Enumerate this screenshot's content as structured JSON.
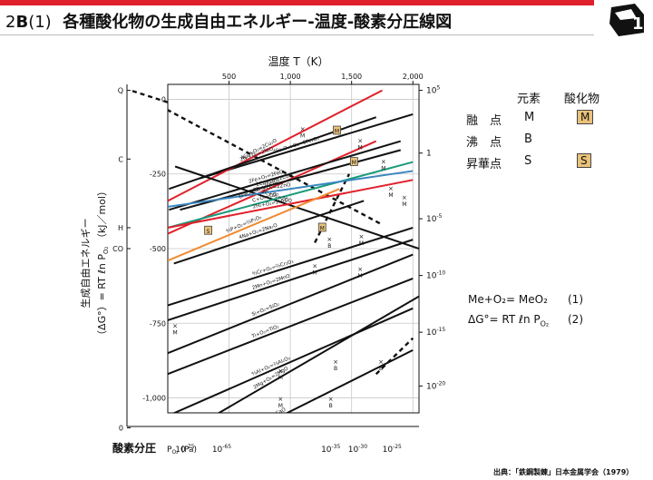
{
  "header": {
    "number": "2",
    "letter": "B",
    "sub": "(1)",
    "title": "各種酸化物の生成自由エネルギー-温度-酸素分圧線図",
    "accent_color": "#e0202a"
  },
  "legend": {
    "col_element": "元素",
    "col_oxide": "酸化物",
    "rows": [
      {
        "label": "融　点",
        "element": "M",
        "oxide": "M"
      },
      {
        "label": "沸　点",
        "element": "B",
        "oxide": ""
      },
      {
        "label": "昇華点",
        "element": "S",
        "oxide": "S"
      }
    ]
  },
  "equations": [
    {
      "text": "Me+O₂= MeO₂",
      "num": "(1)"
    },
    {
      "text": "ΔG°= RT ℓn P",
      "sub": "O₂",
      "num": "(2)"
    }
  ],
  "source": "出典：「鉄鋼製錬」日本金属学会（1979）",
  "chart_data": {
    "type": "line",
    "top_axis": {
      "label": "温度 T（K）",
      "ticks": [
        "500",
        "1,000",
        "1,500",
        "2,000"
      ],
      "values": [
        500,
        1000,
        1500,
        2000
      ],
      "range": [
        0,
        2000
      ]
    },
    "y_axis": {
      "label": "生成自由エネルギー",
      "label2": "（ΔG°）= RT ℓn P",
      "label2_sub": "O₂",
      "label2_tail": "（kJ／mol）",
      "ticks": [
        "0",
        "-250",
        "-500",
        "-750",
        "-1,000"
      ],
      "values": [
        0,
        -250,
        -500,
        -750,
        -1000
      ],
      "range": [
        -1050,
        50
      ]
    },
    "left_scale": [
      {
        "label": "Q",
        "value": 30
      },
      {
        "label": "C",
        "value": -200
      },
      {
        "label": "H",
        "value": -430
      },
      {
        "label": "CO",
        "value": -500
      },
      {
        "label": "0",
        "value": -1100
      }
    ],
    "right_scale": {
      "label_values": [
        {
          "base": "10",
          "exp": "5",
          "value": 30
        },
        {
          "base": "1",
          "exp": "",
          "value": -180
        },
        {
          "base": "10",
          "exp": "-5",
          "value": -400
        },
        {
          "base": "10",
          "exp": "-10",
          "value": -590
        },
        {
          "base": "10",
          "exp": "-15",
          "value": -780
        },
        {
          "base": "10",
          "exp": "-20",
          "value": -960
        }
      ]
    },
    "bottom_axis": {
      "label": "酸素分圧",
      "unit_text": "P",
      "unit_sub": "O₂",
      "unit_tail": "(Pa)",
      "ticks": [
        {
          "base": "10",
          "exp": "-75",
          "x": 140
        },
        {
          "base": "10",
          "exp": "-65",
          "x": 440
        },
        {
          "base": "10",
          "exp": "-35",
          "x": 1330
        },
        {
          "base": "10",
          "exp": "-30",
          "x": 1550
        },
        {
          "base": "10",
          "exp": "-25",
          "x": 1830
        }
      ]
    },
    "series": [
      {
        "name": "4Fe₃O₄+O₂=6Fe₂O₃",
        "color": "#111111",
        "x": [
          260,
          2000
        ],
        "y": [
          -265,
          -50
        ]
      },
      {
        "name": "4Cu+O₂=2Cu₂O",
        "color": "#e0202a",
        "x": [
          0,
          1750
        ],
        "y": [
          -340,
          30
        ]
      },
      {
        "name": "2Ni+O₂=2NiO",
        "color": "#111111",
        "x": [
          10,
          1700
        ],
        "y": [
          -300,
          -60
        ]
      },
      {
        "name": "6FeO+O₂=2Fe₃O₄",
        "color": "#e0202a",
        "x": [
          0,
          1700
        ],
        "y": [
          -450,
          -140
        ]
      },
      {
        "name": "2Co+O₂=2CoO",
        "color": "#111111",
        "x": [
          100,
          1900
        ],
        "y": [
          -370,
          -170
        ]
      },
      {
        "name": "2Fe+O₂=2FeO",
        "color": "#111111",
        "x": [
          10,
          1900
        ],
        "y": [
          -370,
          -140
        ]
      },
      {
        "name": "2C+O₂=2CO",
        "color": "#111111",
        "x": [
          60,
          2050
        ],
        "y": [
          -225,
          -500
        ]
      },
      {
        "name": "C+O₂=CO₂",
        "color": "#1a9a7a",
        "x": [
          0,
          2000
        ],
        "y": [
          -430,
          -210
        ]
      },
      {
        "name": "2Zn+O₂=2ZnO",
        "color": "#3a86c0",
        "x": [
          0,
          2000
        ],
        "y": [
          -360,
          -240
        ]
      },
      {
        "name": "2H₂+O₂=2H₂O",
        "color": "#e0202a",
        "x": [
          0,
          2000
        ],
        "y": [
          -430,
          -270
        ]
      },
      {
        "name": "⁴⁄₃P+O₂=⅔P₂O₅",
        "color": "#f08a30",
        "x": [
          0,
          1400
        ],
        "y": [
          -540,
          -300
        ]
      },
      {
        "name": "4Na+O₂=2Na₂O",
        "color": "#111111",
        "x": [
          50,
          1600
        ],
        "y": [
          -550,
          -340
        ]
      },
      {
        "name": "⁴⁄₃Cr+O₂=⅔Cr₂O₃",
        "color": "#111111",
        "x": [
          0,
          2000
        ],
        "y": [
          -690,
          -430
        ]
      },
      {
        "name": "2Mn+O₂=2MnO",
        "color": "#111111",
        "x": [
          0,
          2000
        ],
        "y": [
          -740,
          -470
        ]
      },
      {
        "name": "Si+O₂=SiO₂",
        "color": "#111111",
        "x": [
          0,
          2000
        ],
        "y": [
          -850,
          -520
        ]
      },
      {
        "name": "Ti+O₂=TiO₂",
        "color": "#111111",
        "x": [
          0,
          2000
        ],
        "y": [
          -920,
          -600
        ]
      },
      {
        "name": "⁴⁄₃Al+O₂=⅔Al₂O₃",
        "color": "#111111",
        "x": [
          0,
          2000
        ],
        "y": [
          -1060,
          -700
        ]
      },
      {
        "name": "2Mg+O₂=2MgO",
        "color": "#111111",
        "x": [
          0,
          2050
        ],
        "y": [
          -1150,
          -660
        ]
      },
      {
        "name": "2Ca+O₂=2CaO",
        "color": "#111111",
        "x": [
          0,
          2000
        ],
        "y": [
          -1250,
          -840
        ]
      }
    ],
    "markers": [
      {
        "type": "M",
        "x": 1380,
        "y": -105,
        "boxed": true
      },
      {
        "type": "M",
        "x": 1520,
        "y": -210,
        "boxed": true
      },
      {
        "type": "M",
        "x": 1260,
        "y": -430,
        "boxed": true
      },
      {
        "type": "S",
        "x": 330,
        "y": -440,
        "boxed": true
      },
      {
        "type": "M",
        "x": 1100,
        "y": -100,
        "boxed": false
      },
      {
        "type": "M",
        "x": 1570,
        "y": -140,
        "boxed": false
      },
      {
        "type": "M",
        "x": 1760,
        "y": -210,
        "boxed": false
      },
      {
        "type": "M",
        "x": 1820,
        "y": -300,
        "boxed": false
      },
      {
        "type": "B",
        "x": 1320,
        "y": -470,
        "boxed": false
      },
      {
        "type": "M",
        "x": 1580,
        "y": -460,
        "boxed": false
      },
      {
        "type": "M",
        "x": 1200,
        "y": -560,
        "boxed": false
      },
      {
        "type": "M",
        "x": 1570,
        "y": -570,
        "boxed": false
      },
      {
        "type": "M",
        "x": 1930,
        "y": -330,
        "boxed": false
      },
      {
        "type": "M",
        "x": 60,
        "y": -760,
        "boxed": false
      },
      {
        "type": "M",
        "x": 920,
        "y": -910,
        "boxed": false
      },
      {
        "type": "B",
        "x": 1370,
        "y": -880,
        "boxed": false
      },
      {
        "type": "M",
        "x": 920,
        "y": -1005,
        "boxed": false
      },
      {
        "type": "B",
        "x": 1330,
        "y": -1005,
        "boxed": false
      },
      {
        "type": "B",
        "x": 1740,
        "y": -880,
        "boxed": false
      },
      {
        "type": "M",
        "x": 1050,
        "y": -1070,
        "boxed": false
      }
    ],
    "dashed": [
      {
        "x": [
          -300,
          1750
        ],
        "y": [
          30,
          -420
        ]
      },
      {
        "x": [
          1200,
          1480
        ],
        "y": [
          -480,
          -250
        ]
      },
      {
        "x": [
          1700,
          2000
        ],
        "y": [
          -920,
          -800
        ]
      }
    ],
    "grid": true
  }
}
